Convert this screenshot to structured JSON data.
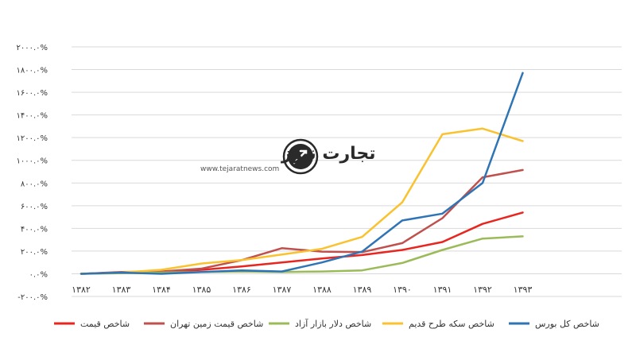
{
  "watermark": {
    "name": "تجارت نیوز",
    "url": "www.tejaratnews.com",
    "accent": "#f5b800",
    "dark": "#2a2a2a"
  },
  "chart_data": {
    "type": "line",
    "title": "",
    "xlabel": "",
    "ylabel": "",
    "ylim": [
      -200,
      2000
    ],
    "grid": true,
    "legend_position": "bottom",
    "y_ticks": [
      -200,
      0,
      200,
      400,
      600,
      800,
      1000,
      1200,
      1400,
      1600,
      1800,
      2000
    ],
    "y_tick_labels": [
      "-۲۰۰.۰%",
      "۰.۰%",
      "۲۰۰.۰%",
      "۴۰۰.۰%",
      "۶۰۰.۰%",
      "۸۰۰.۰%",
      "۱۰۰۰.۰%",
      "۱۲۰۰.۰%",
      "۱۴۰۰.۰%",
      "۱۶۰۰.۰%",
      "۱۸۰۰.۰%",
      "۲۰۰۰.۰%"
    ],
    "categories": [
      "۱۳۸۲",
      "۱۳۸۳",
      "۱۳۸۴",
      "۱۳۸۵",
      "۱۳۸۶",
      "۱۳۸۷",
      "۱۳۸۸",
      "۱۳۸۹",
      "۱۳۹۰",
      "۱۳۹۱",
      "۱۳۹۲",
      "۱۳۹۳"
    ],
    "series": [
      {
        "name": "شاخص قیمت",
        "color": "#e8251f",
        "values": [
          0,
          10,
          15,
          35,
          65,
          100,
          135,
          165,
          210,
          280,
          440,
          540
        ]
      },
      {
        "name": "شاخص قیمت زمین تهران",
        "color": "#c0504d",
        "values": [
          0,
          15,
          20,
          45,
          120,
          225,
          195,
          190,
          270,
          490,
          850,
          915
        ]
      },
      {
        "name": "شاخص دلار بازار آزاد",
        "color": "#9bbb59",
        "values": [
          0,
          5,
          10,
          15,
          20,
          15,
          20,
          30,
          95,
          210,
          310,
          330
        ]
      },
      {
        "name": "شاخص سکه طرح قدیم",
        "color": "#f9c22e",
        "values": [
          0,
          10,
          35,
          90,
          120,
          170,
          220,
          325,
          630,
          1230,
          1280,
          1170
        ]
      },
      {
        "name": "شاخص کل بورس",
        "color": "#2f75b5",
        "values": [
          0,
          10,
          0,
          15,
          30,
          20,
          100,
          195,
          470,
          530,
          800,
          1770
        ]
      }
    ]
  }
}
